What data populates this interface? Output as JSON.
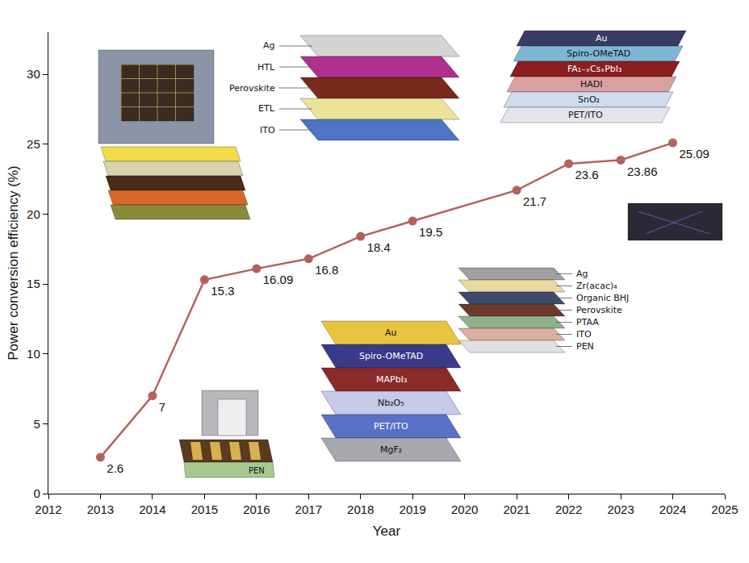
{
  "chart_data": {
    "type": "line",
    "x": [
      2013,
      2014,
      2015,
      2016,
      2017,
      2018,
      2019,
      2021,
      2022,
      2023,
      2024
    ],
    "values": [
      2.6,
      7,
      15.3,
      16.09,
      16.8,
      18.4,
      19.5,
      21.7,
      23.6,
      23.86,
      25.09
    ],
    "color": "#b5615d",
    "marker": "circle",
    "data_labels": true,
    "xlabel": "Year",
    "ylabel": "Power conversion efficiency (%)",
    "xlim": [
      2012,
      2025
    ],
    "xticks": [
      2012,
      2013,
      2014,
      2015,
      2016,
      2017,
      2018,
      2019,
      2020,
      2021,
      2022,
      2023,
      2024,
      2025
    ],
    "ylim": [
      0,
      33
    ],
    "yticks": [
      0,
      5,
      10,
      15,
      20,
      25,
      30
    ],
    "grid": false,
    "insets": [
      [
        "Ag",
        "HTL",
        "Perovskite",
        "ETL",
        "ITO"
      ],
      [
        "Au",
        "Spiro-OMeTAD",
        "FA₁₋ₓCsₓPbI₃",
        "HADI",
        "SnO₂",
        "PET/ITO"
      ],
      [
        "Ag",
        "Zr(acac)₄",
        "Organic BHJ",
        "Perovskite",
        "PTAA",
        "ITO",
        "PEN"
      ],
      [
        "Au",
        "Spiro-OMeTAD",
        "MAPbI₃",
        "Nb₂O₅",
        "PET/ITO",
        "MgF₂"
      ],
      [
        "PEN"
      ]
    ]
  }
}
